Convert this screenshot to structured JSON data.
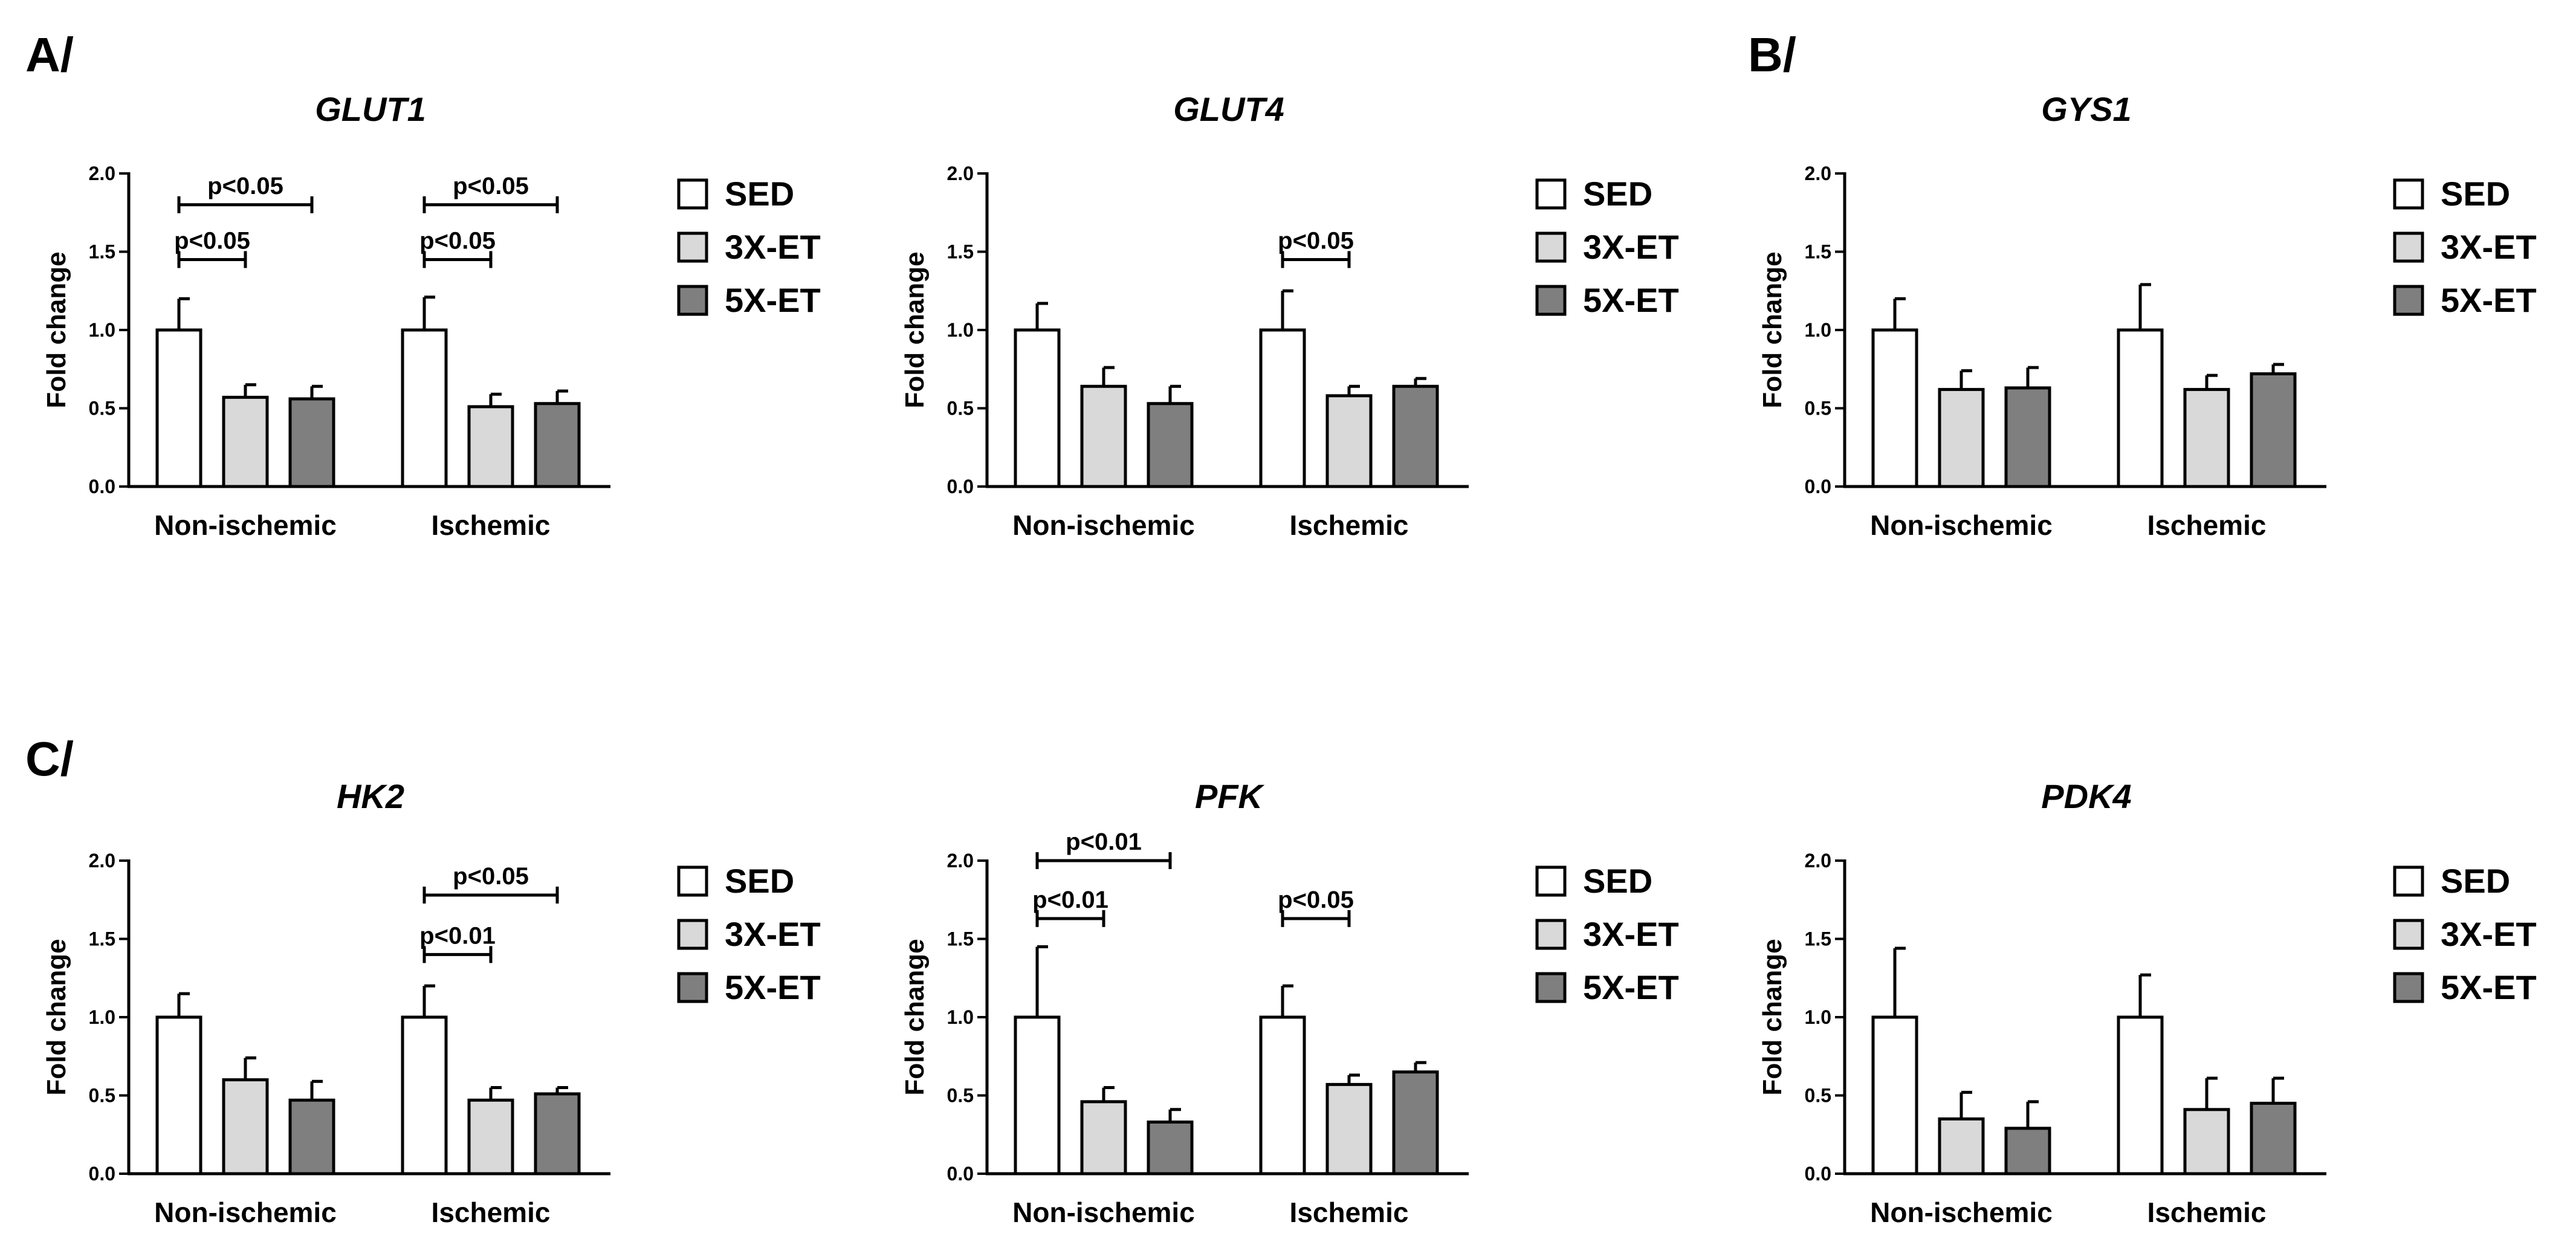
{
  "panel_labels": [
    "A/",
    "B/",
    "C/"
  ],
  "legend": [
    {
      "name": "SED",
      "color": "#ffffff"
    },
    {
      "name": "3X-ET",
      "color": "#d9d9d9"
    },
    {
      "name": "5X-ET",
      "color": "#7f7f7f"
    }
  ],
  "chart_data": [
    {
      "type": "bar",
      "title": "GLUT1",
      "ylabel": "Fold change",
      "ylim": [
        0,
        2.0
      ],
      "yticks": [
        "0.0",
        "0.5",
        "1.0",
        "1.5",
        "2.0"
      ],
      "categories": [
        "Non-ischemic",
        "Ischemic"
      ],
      "series": [
        {
          "name": "SED",
          "values": [
            1.0,
            1.0
          ],
          "errors": [
            0.2,
            0.21
          ]
        },
        {
          "name": "3X-ET",
          "values": [
            0.57,
            0.51
          ],
          "errors": [
            0.08,
            0.08
          ]
        },
        {
          "name": "5X-ET",
          "values": [
            0.56,
            0.53
          ],
          "errors": [
            0.08,
            0.08
          ]
        }
      ],
      "annotations": [
        {
          "category": 0,
          "from": 0,
          "to": 1,
          "level": 1.45,
          "text": "p<0.05"
        },
        {
          "category": 0,
          "from": 0,
          "to": 2,
          "level": 1.8,
          "text": "p<0.05"
        },
        {
          "category": 1,
          "from": 0,
          "to": 1,
          "level": 1.45,
          "text": "p<0.05"
        },
        {
          "category": 1,
          "from": 0,
          "to": 2,
          "level": 1.8,
          "text": "p<0.05"
        }
      ]
    },
    {
      "type": "bar",
      "title": "GLUT4",
      "ylabel": "Fold change",
      "ylim": [
        0,
        2.0
      ],
      "yticks": [
        "0.0",
        "0.5",
        "1.0",
        "1.5",
        "2.0"
      ],
      "categories": [
        "Non-ischemic",
        "Ischemic"
      ],
      "series": [
        {
          "name": "SED",
          "values": [
            1.0,
            1.0
          ],
          "errors": [
            0.17,
            0.25
          ]
        },
        {
          "name": "3X-ET",
          "values": [
            0.64,
            0.58
          ],
          "errors": [
            0.12,
            0.06
          ]
        },
        {
          "name": "5X-ET",
          "values": [
            0.53,
            0.64
          ],
          "errors": [
            0.11,
            0.05
          ]
        }
      ],
      "annotations": [
        {
          "category": 1,
          "from": 0,
          "to": 1,
          "level": 1.45,
          "text": "p<0.05"
        }
      ]
    },
    {
      "type": "bar",
      "title": "GYS1",
      "ylabel": "Fold change",
      "ylim": [
        0,
        2.0
      ],
      "yticks": [
        "0.0",
        "0.5",
        "1.0",
        "1.5",
        "2.0"
      ],
      "categories": [
        "Non-ischemic",
        "Ischemic"
      ],
      "series": [
        {
          "name": "SED",
          "values": [
            1.0,
            1.0
          ],
          "errors": [
            0.2,
            0.29
          ]
        },
        {
          "name": "3X-ET",
          "values": [
            0.62,
            0.62
          ],
          "errors": [
            0.12,
            0.09
          ]
        },
        {
          "name": "5X-ET",
          "values": [
            0.63,
            0.72
          ],
          "errors": [
            0.13,
            0.06
          ]
        }
      ],
      "annotations": []
    },
    {
      "type": "bar",
      "title": "HK2",
      "ylabel": "Fold change",
      "ylim": [
        0,
        2.0
      ],
      "yticks": [
        "0.0",
        "0.5",
        "1.0",
        "1.5",
        "2.0"
      ],
      "categories": [
        "Non-ischemic",
        "Ischemic"
      ],
      "series": [
        {
          "name": "SED",
          "values": [
            1.0,
            1.0
          ],
          "errors": [
            0.15,
            0.2
          ]
        },
        {
          "name": "3X-ET",
          "values": [
            0.6,
            0.47
          ],
          "errors": [
            0.14,
            0.08
          ]
        },
        {
          "name": "5X-ET",
          "values": [
            0.47,
            0.51
          ],
          "errors": [
            0.12,
            0.04
          ]
        }
      ],
      "annotations": [
        {
          "category": 1,
          "from": 0,
          "to": 1,
          "level": 1.4,
          "text": "p<0.01"
        },
        {
          "category": 1,
          "from": 0,
          "to": 2,
          "level": 1.78,
          "text": "p<0.05"
        }
      ]
    },
    {
      "type": "bar",
      "title": "PFK",
      "ylabel": "Fold change",
      "ylim": [
        0,
        2.0
      ],
      "yticks": [
        "0.0",
        "0.5",
        "1.0",
        "1.5",
        "2.0"
      ],
      "categories": [
        "Non-ischemic",
        "Ischemic"
      ],
      "series": [
        {
          "name": "SED",
          "values": [
            1.0,
            1.0
          ],
          "errors": [
            0.45,
            0.2
          ]
        },
        {
          "name": "3X-ET",
          "values": [
            0.46,
            0.57
          ],
          "errors": [
            0.09,
            0.06
          ]
        },
        {
          "name": "5X-ET",
          "values": [
            0.33,
            0.65
          ],
          "errors": [
            0.08,
            0.06
          ]
        }
      ],
      "annotations": [
        {
          "category": 0,
          "from": 0,
          "to": 1,
          "level": 1.63,
          "text": "p<0.01"
        },
        {
          "category": 0,
          "from": 0,
          "to": 2,
          "level": 2.0,
          "text": "p<0.01"
        },
        {
          "category": 1,
          "from": 0,
          "to": 1,
          "level": 1.63,
          "text": "p<0.05"
        }
      ]
    },
    {
      "type": "bar",
      "title": "PDK4",
      "ylabel": "Fold change",
      "ylim": [
        0,
        2.0
      ],
      "yticks": [
        "0.0",
        "0.5",
        "1.0",
        "1.5",
        "2.0"
      ],
      "categories": [
        "Non-ischemic",
        "Ischemic"
      ],
      "series": [
        {
          "name": "SED",
          "values": [
            1.0,
            1.0
          ],
          "errors": [
            0.44,
            0.27
          ]
        },
        {
          "name": "3X-ET",
          "values": [
            0.35,
            0.41
          ],
          "errors": [
            0.17,
            0.2
          ]
        },
        {
          "name": "5X-ET",
          "values": [
            0.29,
            0.45
          ],
          "errors": [
            0.17,
            0.16
          ]
        }
      ],
      "annotations": []
    }
  ]
}
